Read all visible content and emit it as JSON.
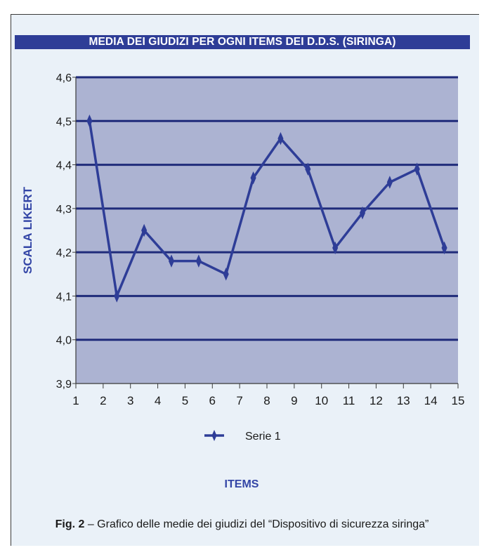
{
  "chart_data": {
    "type": "line",
    "title": "MEDIA DEI GIUDIZI PER OGNI ITEMS DEI D.D.S. (SIRINGA)",
    "xlabel": "ITEMS",
    "ylabel": "SCALA LIKERT",
    "ylim": [
      3.9,
      4.6
    ],
    "yticks": [
      "3,9",
      "4,0",
      "4,1",
      "4,2",
      "4,3",
      "4,4",
      "4,5",
      "4,6"
    ],
    "xticks": [
      "1",
      "2",
      "3",
      "4",
      "5",
      "6",
      "7",
      "8",
      "9",
      "10",
      "11",
      "12",
      "13",
      "14",
      "15"
    ],
    "grid": true,
    "legend_position": "bottom",
    "series": [
      {
        "name": "Serie 1",
        "x": [
          1.5,
          2.5,
          3.5,
          4.5,
          5.5,
          6.5,
          7.5,
          8.5,
          9.5,
          10.5,
          11.5,
          12.5,
          13.5,
          14.5
        ],
        "values": [
          4.5,
          4.1,
          4.25,
          4.18,
          4.18,
          4.15,
          4.37,
          4.46,
          4.39,
          4.21,
          4.29,
          4.36,
          4.39,
          4.21
        ]
      }
    ],
    "colors": {
      "plot_bg": "#acb3d2",
      "line": "#2e3d97",
      "gridline": "#1f2b7a",
      "title_bar": "#2e3d97",
      "axis_title": "#3345a6"
    }
  },
  "caption": {
    "label": "Fig. 2",
    "text": " – Grafico delle medie dei giudizi del “Dispositivo di sicurezza siringa”"
  }
}
